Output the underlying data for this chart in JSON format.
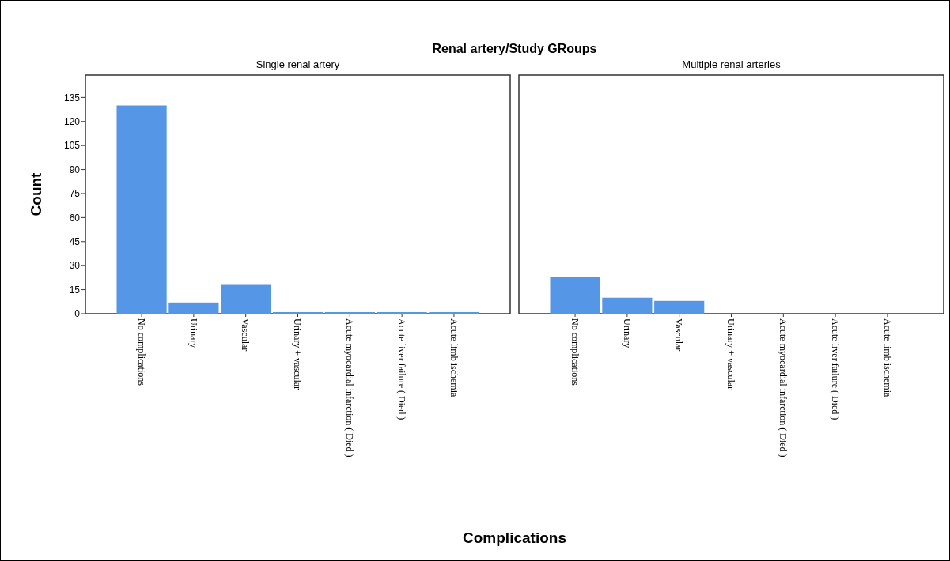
{
  "chart_data": [
    {
      "type": "bar",
      "title": "Renal artery/Study GRoups",
      "subtitle": "Single renal artery",
      "xlabel": "Complications",
      "ylabel": "Count",
      "categories": [
        "No complications",
        "Urinary",
        "Vascular",
        "Urinary + vascular",
        "Acute myocardial infarction ( Died )",
        "Acute liver failure ( Died )",
        "Acute limb ischemia"
      ],
      "values": [
        130,
        7,
        18,
        1,
        1,
        1,
        1
      ],
      "color": "#5596e6",
      "ylim": [
        0,
        149
      ],
      "yticks": [
        0,
        15,
        30,
        45,
        60,
        75,
        90,
        105,
        120,
        135
      ]
    },
    {
      "type": "bar",
      "subtitle": "Multiple renal arteries",
      "categories": [
        "No complications",
        "Urinary",
        "Vascular",
        "Urinary + vascular",
        "Acute myocardial infarction ( Died )",
        "Acute liver failure ( Died )",
        "Acute limb ischemia"
      ],
      "values": [
        23,
        10,
        8,
        0,
        0,
        0,
        0
      ],
      "color": "#5596e6",
      "ylim": [
        0,
        149
      ],
      "tick_labels": "x"
    }
  ]
}
